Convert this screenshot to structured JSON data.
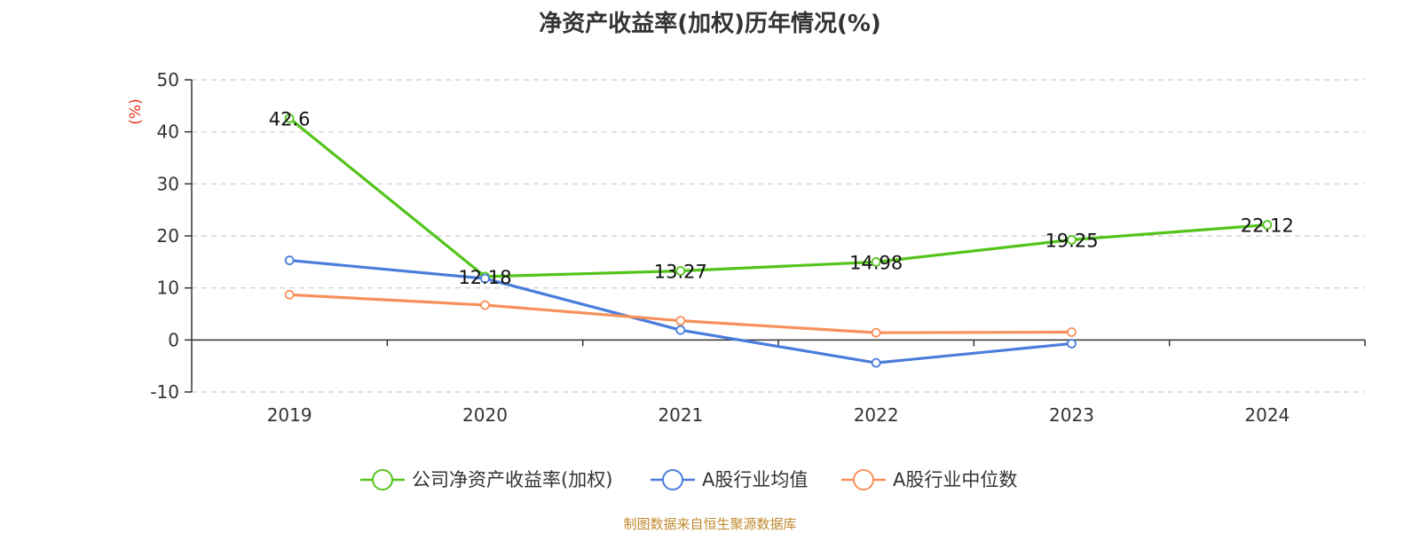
{
  "chart_data": {
    "type": "line",
    "title": "净资产收益率(加权)历年情况(%)",
    "ylabel": "(%)",
    "xlabel": "",
    "categories": [
      "2019",
      "2020",
      "2021",
      "2022",
      "2023",
      "2024"
    ],
    "ylim": [
      -10,
      50
    ],
    "yticks": [
      "-10",
      "0",
      "10",
      "20",
      "30",
      "40",
      "50"
    ],
    "grid": true,
    "legend_position": "bottom-center",
    "series": [
      {
        "name": "公司净资产收益率(加权)",
        "color": "#52c41a",
        "values": [
          42.6,
          12.18,
          13.27,
          14.98,
          19.25,
          22.12
        ],
        "labels": [
          "42.6",
          "12.18",
          "13.27",
          "14.98",
          "19.25",
          "22.12"
        ]
      },
      {
        "name": "A股行业均值",
        "color": "#4a7ddb",
        "values": [
          15.3,
          11.8,
          1.9,
          -4.4,
          -0.7,
          null
        ]
      },
      {
        "name": "A股行业中位数",
        "color": "#f7905a",
        "values": [
          8.7,
          6.7,
          3.7,
          1.4,
          1.5,
          null
        ]
      }
    ]
  },
  "source": "制图数据来自恒生聚源数据库"
}
